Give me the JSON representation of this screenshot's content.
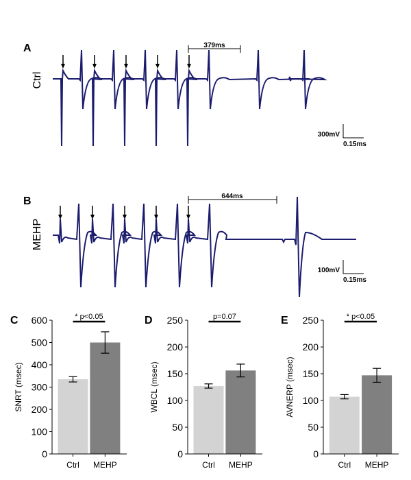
{
  "panels": {
    "A": {
      "letter": "A",
      "label": "Ctrl",
      "interval": "379ms",
      "scale_v": "300mV",
      "scale_t": "0.15ms"
    },
    "B": {
      "letter": "B",
      "label": "MEHP",
      "interval": "644ms",
      "scale_v": "100mV",
      "scale_t": "0.15ms"
    }
  },
  "trace_color": "#1c1c6e",
  "bar_colors": {
    "Ctrl": "#d3d3d3",
    "MEHP": "#808080"
  },
  "chart_data": [
    {
      "type": "bar",
      "letter": "C",
      "categories": [
        "Ctrl",
        "MEHP"
      ],
      "values": [
        335,
        500
      ],
      "errors": [
        12,
        48
      ],
      "ylabel": "SNRT (msec)",
      "ylim": [
        0,
        600
      ],
      "yticks": [
        "0",
        "100",
        "200",
        "300",
        "400",
        "500",
        "600"
      ],
      "significance": "* p<0.05"
    },
    {
      "type": "bar",
      "letter": "D",
      "categories": [
        "Ctrl",
        "MEHP"
      ],
      "values": [
        127,
        156
      ],
      "errors": [
        4,
        12
      ],
      "ylabel": "WBCL (msec)",
      "ylim": [
        0,
        250
      ],
      "yticks": [
        "0",
        "50",
        "100",
        "150",
        "200",
        "250"
      ],
      "significance": "p=0.07"
    },
    {
      "type": "bar",
      "letter": "E",
      "categories": [
        "Ctrl",
        "MEHP"
      ],
      "values": [
        107,
        147
      ],
      "errors": [
        4,
        13
      ],
      "ylabel": "AVNERP (msec)",
      "ylim": [
        0,
        250
      ],
      "yticks": [
        "0",
        "50",
        "100",
        "150",
        "200",
        "250"
      ],
      "significance": "* p<0.05"
    }
  ]
}
